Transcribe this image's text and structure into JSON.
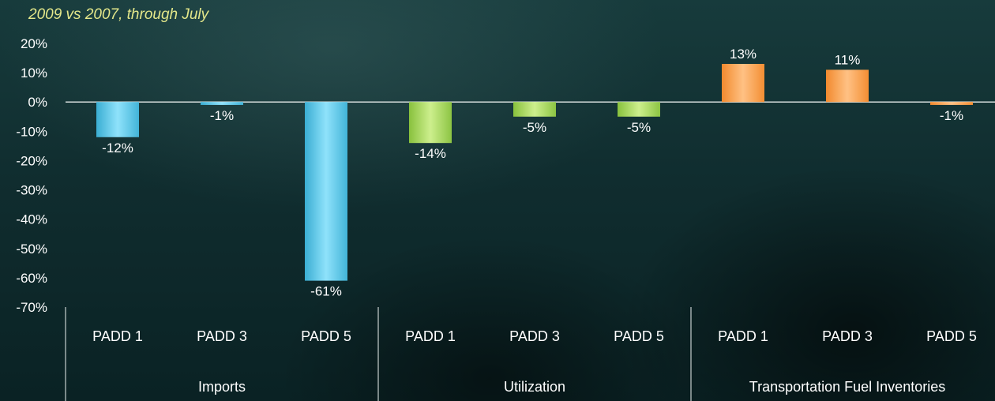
{
  "chart_data": {
    "type": "bar",
    "subtitle": "2009 vs 2007, through July",
    "ylim": [
      -70,
      20
    ],
    "yticks": [
      20,
      10,
      0,
      -10,
      -20,
      -30,
      -40,
      -50,
      -60,
      -70
    ],
    "ytick_labels": [
      "20%",
      "10%",
      "0%",
      "-10%",
      "-20%",
      "-30%",
      "-40%",
      "-50%",
      "-60%",
      "-70%"
    ],
    "grid": false,
    "groups": [
      {
        "name": "Imports",
        "color": "#5ec8ea",
        "categories": [
          "PADD 1",
          "PADD 3",
          "PADD 5"
        ],
        "values": [
          -12,
          -1,
          -61
        ],
        "labels": [
          "-12%",
          "-1%",
          "-61%"
        ]
      },
      {
        "name": "Utilization",
        "color": "#a6d85a",
        "categories": [
          "PADD 1",
          "PADD 3",
          "PADD 5"
        ],
        "values": [
          -14,
          -5,
          -5
        ],
        "labels": [
          "-14%",
          "-5%",
          "-5%"
        ]
      },
      {
        "name": "Transportation Fuel Inventories",
        "color": "#f99d45",
        "categories": [
          "PADD 1",
          "PADD 3",
          "PADD 5"
        ],
        "values": [
          13,
          11,
          -1
        ],
        "labels": [
          "13%",
          "11%",
          "-1%"
        ]
      }
    ]
  }
}
